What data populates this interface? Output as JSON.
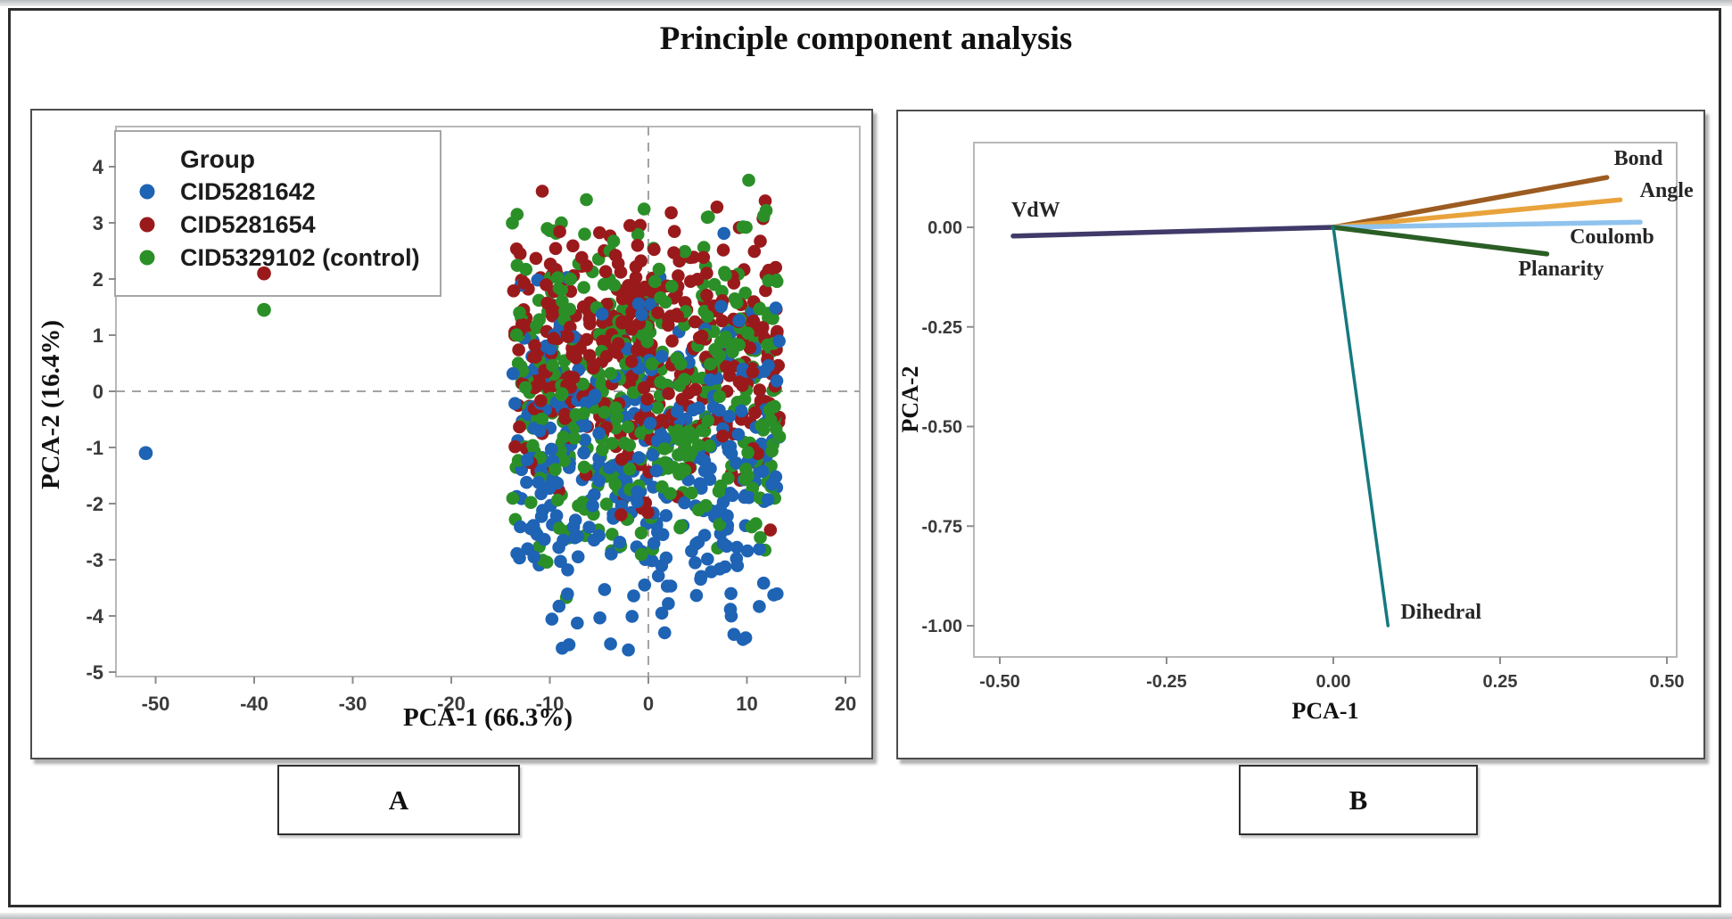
{
  "figure": {
    "title": "Principle component analysis",
    "panel_a_label": "A",
    "panel_b_label": "B"
  },
  "chart_data": [
    {
      "id": "panel_a",
      "type": "scatter",
      "xlabel": "PCA-1 (66.3%)",
      "ylabel": "PCA-2 (16.4%)",
      "xlim": [
        -55,
        21.5
      ],
      "ylim": [
        -5.1,
        4.8
      ],
      "xticks": [
        -50,
        -40,
        -30,
        -20,
        -10,
        0,
        10,
        20
      ],
      "yticks": [
        4,
        3,
        2,
        1,
        0,
        -1,
        -2,
        -3,
        -4,
        -5
      ],
      "grid": "off",
      "zero_reference_lines": {
        "x": 0,
        "y": 0,
        "style": "dashed"
      },
      "legend_title": "Group",
      "legend_position": "top-left",
      "series": [
        {
          "name": "CID5281642",
          "color": "#1e63b4",
          "cluster": {
            "n": 360,
            "x_min": -13.8,
            "x_max": 13.3,
            "y_mean": -1.25,
            "y_sd": 1.55,
            "y_min": -4.65,
            "y_max": 2.95
          },
          "outliers": [
            [
              -51,
              -1.1
            ]
          ]
        },
        {
          "name": "CID5281654",
          "color": "#9a1a1c",
          "cluster": {
            "n": 390,
            "x_min": -13.8,
            "x_max": 13.3,
            "y_mean": 0.8,
            "y_sd": 1.15,
            "y_min": -2.95,
            "y_max": 4.05
          },
          "outliers": [
            [
              -39,
              2.1
            ]
          ]
        },
        {
          "name": "CID5329102 (control)",
          "color": "#2b8f28",
          "cluster": {
            "n": 410,
            "x_min": -13.8,
            "x_max": 13.3,
            "y_mean": 0.05,
            "y_sd": 1.5,
            "y_min": -4.35,
            "y_max": 3.8
          },
          "outliers": [
            [
              -39,
              1.45
            ]
          ]
        }
      ],
      "note": "Dense overlapping point cloud between PCA-1 of -14 and +13; individual points are not resolvable in the source image and are regenerated procedurally from the cluster parameters above."
    },
    {
      "id": "panel_b",
      "type": "line",
      "variant": "pca_loading_plot",
      "xlabel": "PCA-1",
      "ylabel": "PCA-2",
      "xlim": [
        -0.54,
        0.52
      ],
      "ylim": [
        -1.08,
        0.21
      ],
      "xticks": [
        -0.5,
        -0.25,
        0,
        0.25,
        0.5
      ],
      "xtick_labels": [
        "-0.50",
        "-0.25",
        "0.00",
        "0.25",
        "0.50"
      ],
      "yticks": [
        0,
        -0.25,
        -0.5,
        -0.75,
        -1
      ],
      "ytick_labels": [
        "0.00",
        "-0.25",
        "-0.50",
        "-0.75",
        "-1.00"
      ],
      "grid": "off",
      "origin": [
        0,
        0
      ],
      "loadings": [
        {
          "name": "VdW",
          "x": -0.48,
          "y": -0.022,
          "color": "#3f3a69"
        },
        {
          "name": "Bond",
          "x": 0.41,
          "y": 0.125,
          "color": "#9c5b20"
        },
        {
          "name": "Angle",
          "x": 0.43,
          "y": 0.069,
          "color": "#e9a33c"
        },
        {
          "name": "Coulomb",
          "x": 0.46,
          "y": 0.013,
          "color": "#8fc3ee"
        },
        {
          "name": "Planarity",
          "x": 0.32,
          "y": -0.067,
          "color": "#2b5e25"
        },
        {
          "name": "Dihedral",
          "x": 0.082,
          "y": -1.0,
          "color": "#15797f"
        }
      ]
    }
  ]
}
